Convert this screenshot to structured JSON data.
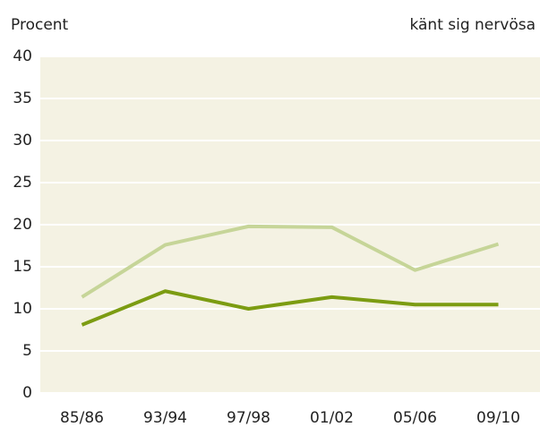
{
  "chart_data": {
    "type": "line",
    "y_label": "Procent",
    "annotation": "känt sig nervösa",
    "categories": [
      "85/86",
      "93/94",
      "97/98",
      "01/02",
      "05/06",
      "09/10"
    ],
    "series": [
      {
        "color": "#c6d598",
        "values": [
          11.4,
          17.6,
          19.8,
          19.7,
          14.6,
          17.7
        ]
      },
      {
        "color": "#7c9c12",
        "values": [
          8.1,
          12.1,
          10.0,
          11.4,
          10.5,
          10.5
        ]
      }
    ],
    "ylim": [
      0,
      40
    ],
    "yticks": [
      0,
      5,
      10,
      15,
      20,
      25,
      30,
      35,
      40
    ],
    "grid": true
  }
}
